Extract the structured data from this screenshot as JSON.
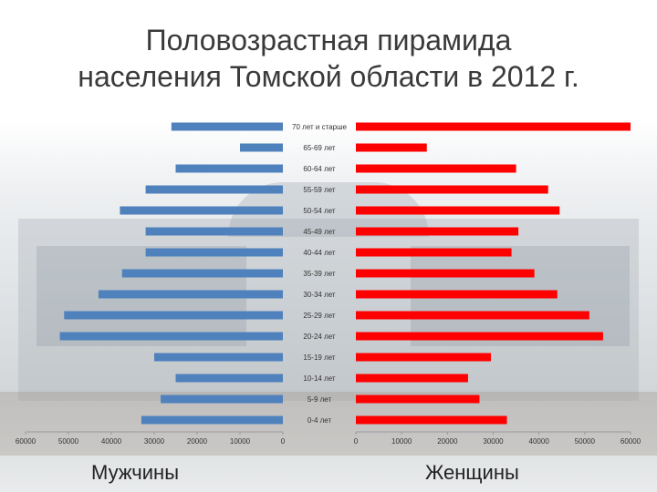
{
  "title_line1": "Половозрастная пирамида",
  "title_line2": "населения Томской области в 2012 г.",
  "male_label": "Мужчины",
  "female_label": "Женщины",
  "colors": {
    "male": "#4f81bd",
    "female": "#ff0000"
  },
  "chart_data": {
    "type": "bar",
    "orientation": "horizontal-pyramid",
    "categories": [
      "70 лет и старше",
      "65-69 лет",
      "60-64 лет",
      "55-59 лет",
      "50-54 лет",
      "45-49 лет",
      "40-44 лет",
      "35-39 лет",
      "30-34 лет",
      "25-29 лет",
      "20-24 лет",
      "15-19 лет",
      "10-14 лет",
      "5-9 лет",
      "0-4 лет"
    ],
    "series": [
      {
        "name": "Мужчины",
        "values": [
          26000,
          10000,
          25000,
          32000,
          38000,
          32000,
          32000,
          37500,
          43000,
          51000,
          52000,
          30000,
          25000,
          28500,
          33000
        ]
      },
      {
        "name": "Женщины",
        "values": [
          60000,
          15500,
          35000,
          42000,
          44500,
          35500,
          34000,
          39000,
          44000,
          51000,
          54000,
          29500,
          24500,
          27000,
          33000
        ]
      }
    ],
    "male_xlim": [
      0,
      60000
    ],
    "female_xlim": [
      0,
      60000
    ],
    "ticks": [
      0,
      10000,
      20000,
      30000,
      40000,
      50000,
      60000
    ],
    "tick_labels": [
      "0",
      "10000",
      "20000",
      "30000",
      "40000",
      "50000",
      "60000"
    ],
    "grid": false
  }
}
